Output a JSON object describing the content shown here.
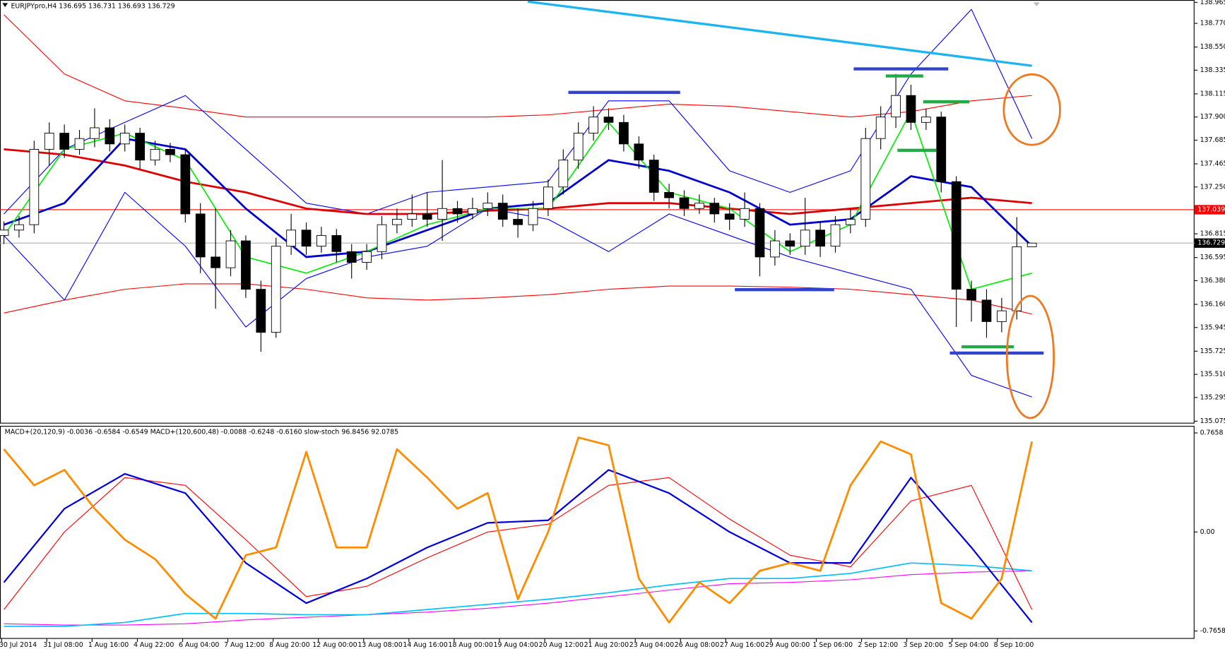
{
  "chart_data": [
    {
      "type": "candlestick",
      "title": "EURJPYpro,H4  136.695 136.731 136.693 136.729",
      "ylim": [
        135.075,
        138.965
      ],
      "yticks": [
        138.965,
        {
          "value": 138.77,
          "label": "138.770"
        },
        {
          "value": 138.55,
          "label": "138.550"
        },
        138.335,
        138.115,
        {
          "value": 137.9,
          "label": "137.900"
        },
        137.685,
        137.465,
        {
          "value": 137.25,
          "label": "137.250"
        },
        136.815,
        136.595,
        {
          "value": 136.38,
          "label": "136.380"
        },
        {
          "value": 136.16,
          "label": "136.160"
        },
        135.945,
        135.725,
        {
          "value": 135.51,
          "label": "135.510"
        },
        135.295,
        135.075
      ],
      "hline": {
        "value": 137.039,
        "color": "#ff0000"
      },
      "last_price": 136.729,
      "up_color": "#ffffff",
      "down_color": "#000000",
      "open": [
        136.8,
        136.85,
        136.9,
        137.6,
        137.75,
        137.6,
        137.7,
        137.8,
        137.65,
        137.75,
        137.5,
        137.6,
        137.55,
        137.0,
        136.6,
        136.5,
        136.75,
        136.3,
        135.9,
        136.7,
        136.85,
        136.7,
        136.8,
        136.65,
        136.55,
        136.65,
        136.9,
        136.95,
        137.0,
        136.95,
        137.05,
        137.0,
        137.05,
        137.1,
        136.95,
        136.9,
        137.05,
        137.25,
        137.5,
        137.75,
        137.9,
        137.85,
        137.65,
        137.5,
        137.2,
        137.15,
        137.05,
        137.1,
        137.0,
        136.95,
        137.05,
        136.6,
        136.75,
        136.7,
        136.85,
        136.7,
        136.9,
        136.95,
        137.7,
        137.9,
        138.1,
        137.85,
        137.9,
        137.3,
        136.3,
        136.2,
        136.0,
        136.1,
        136.695
      ],
      "high": [
        136.93,
        136.98,
        137.68,
        137.85,
        137.83,
        137.78,
        137.98,
        137.88,
        137.83,
        137.8,
        137.68,
        137.66,
        137.6,
        137.1,
        137.05,
        136.85,
        136.8,
        136.38,
        136.78,
        137.0,
        136.92,
        136.88,
        136.86,
        136.72,
        136.72,
        136.98,
        137.05,
        137.18,
        137.2,
        137.5,
        137.12,
        137.15,
        137.2,
        137.18,
        137.05,
        137.12,
        137.32,
        137.6,
        137.85,
        138.0,
        137.98,
        137.92,
        137.72,
        137.55,
        137.28,
        137.22,
        137.18,
        137.15,
        137.1,
        137.2,
        137.1,
        136.85,
        136.82,
        137.15,
        136.92,
        136.98,
        137.05,
        137.8,
        138.0,
        138.3,
        138.2,
        137.98,
        137.95,
        137.35,
        136.38,
        136.3,
        136.22,
        136.97,
        136.731
      ],
      "low": [
        136.72,
        136.78,
        136.82,
        137.45,
        137.52,
        137.55,
        137.62,
        137.58,
        137.58,
        137.42,
        137.45,
        137.48,
        136.92,
        136.45,
        136.12,
        136.42,
        136.22,
        135.72,
        135.85,
        136.62,
        136.62,
        136.64,
        136.55,
        136.4,
        136.48,
        136.58,
        136.82,
        136.88,
        136.88,
        136.75,
        136.92,
        136.95,
        136.98,
        136.88,
        136.78,
        136.84,
        136.98,
        137.18,
        137.42,
        137.68,
        137.78,
        137.58,
        137.42,
        137.12,
        137.05,
        136.98,
        137.0,
        136.92,
        136.85,
        136.88,
        136.42,
        136.52,
        136.62,
        136.62,
        136.6,
        136.64,
        136.82,
        136.88,
        137.6,
        137.8,
        137.78,
        137.78,
        137.2,
        135.95,
        136.0,
        135.85,
        135.9,
        136.02,
        136.693
      ],
      "close": [
        136.85,
        136.9,
        137.6,
        137.75,
        137.6,
        137.7,
        137.8,
        137.65,
        137.75,
        137.5,
        137.6,
        137.55,
        137.0,
        136.6,
        136.5,
        136.75,
        136.3,
        135.9,
        136.7,
        136.85,
        136.7,
        136.8,
        136.65,
        136.55,
        136.65,
        136.9,
        136.95,
        137.0,
        136.95,
        137.05,
        137.0,
        137.05,
        137.1,
        136.95,
        136.9,
        137.05,
        137.25,
        137.5,
        137.75,
        137.9,
        137.85,
        137.65,
        137.5,
        137.2,
        137.15,
        137.05,
        137.1,
        137.0,
        136.95,
        137.05,
        136.6,
        136.75,
        136.7,
        136.85,
        136.7,
        136.9,
        136.95,
        137.7,
        137.9,
        138.1,
        137.85,
        137.9,
        137.3,
        136.3,
        136.2,
        136.0,
        136.1,
        136.695,
        136.729
      ],
      "series": [
        {
          "color": "#ff0000",
          "width": 1,
          "values": [
            138.85,
            138.3,
            138.05,
            137.98,
            137.9,
            137.9,
            137.9,
            137.9,
            137.9,
            137.92,
            137.97,
            138.02,
            138.0,
            137.95,
            137.9,
            137.95,
            138.05,
            138.1
          ]
        },
        {
          "color": "#ff0000",
          "width": 1,
          "values": [
            136.08,
            136.2,
            136.3,
            136.35,
            136.35,
            136.3,
            136.22,
            136.2,
            136.22,
            136.25,
            136.3,
            136.33,
            136.33,
            136.32,
            136.3,
            136.25,
            136.2,
            136.07
          ]
        },
        {
          "color": "#0000ff",
          "width": 1,
          "values": [
            137.0,
            137.6,
            137.85,
            138.1,
            137.6,
            137.1,
            137.0,
            137.2,
            137.25,
            137.3,
            138.05,
            138.05,
            137.4,
            137.2,
            137.4,
            138.3,
            138.9,
            137.7
          ]
        },
        {
          "color": "#0000ff",
          "width": 1,
          "values": [
            136.8,
            136.2,
            137.2,
            136.7,
            135.95,
            136.4,
            136.6,
            136.7,
            137.05,
            136.95,
            136.65,
            137.0,
            136.8,
            136.6,
            136.45,
            136.3,
            135.5,
            135.3
          ]
        },
        {
          "color": "#dd0000",
          "width": 2.5,
          "values": [
            137.6,
            137.55,
            137.45,
            137.3,
            137.2,
            137.05,
            137.0,
            137.0,
            137.03,
            137.05,
            137.1,
            137.1,
            137.05,
            137.0,
            137.05,
            137.1,
            137.15,
            137.1
          ]
        },
        {
          "color": "#0000cc",
          "width": 2.5,
          "values": [
            136.9,
            137.1,
            137.7,
            137.6,
            137.05,
            136.6,
            136.65,
            136.85,
            137.05,
            137.1,
            137.5,
            137.4,
            137.2,
            136.9,
            136.95,
            137.35,
            137.25,
            136.7
          ]
        },
        {
          "color": "#00ee00",
          "width": 1.5,
          "values": [
            136.8,
            137.6,
            137.75,
            137.5,
            136.6,
            136.45,
            136.65,
            136.9,
            137.05,
            137.05,
            137.85,
            137.2,
            137.05,
            136.65,
            136.9,
            137.95,
            136.3,
            136.45
          ]
        }
      ],
      "time_labels": [
        "30 Jul 2014",
        "31 Jul 08:00",
        "1 Aug 16:00",
        "4 Aug 22:00",
        "6 Aug 04:00",
        "7 Aug 12:00",
        "8 Aug 20:00",
        "12 Aug 00:00",
        "13 Aug 08:00",
        "14 Aug 16:00",
        "18 Aug 00:00",
        "19 Aug 04:00",
        "20 Aug 12:00",
        "21 Aug 20:00",
        "23 Aug 04:00",
        "26 Aug 08:00",
        "27 Aug 16:00",
        "29 Aug 00:00",
        "1 Sep 06:00",
        "2 Sep 12:00",
        "3 Sep 20:00",
        "5 Sep 04:00",
        "8 Sep 10:00"
      ]
    },
    {
      "type": "line",
      "title": "MACD+(20,120,9) -0.0036 -0.6584 -0.6549   MACD+(120,600,48) -0.0088 -0.6248 -0.6160   slow-stoch 96.8456 92.0785",
      "ylim": [
        -0.7658,
        0.7658
      ],
      "yticks": [
        0.7658,
        {
          "value": 0,
          "label": "0.00"
        },
        -0.7658
      ],
      "series": [
        {
          "color": "#ff00ff",
          "width": 1,
          "values": [
            -0.71,
            -0.72,
            -0.72,
            -0.71,
            -0.68,
            -0.66,
            -0.64,
            -0.62,
            -0.59,
            -0.55,
            -0.5,
            -0.45,
            -0.4,
            -0.39,
            -0.37,
            -0.33,
            -0.31,
            -0.3
          ]
        },
        {
          "color": "#00bfff",
          "width": 1.5,
          "values": [
            -0.73,
            -0.73,
            -0.7,
            -0.63,
            -0.63,
            -0.64,
            -0.64,
            -0.6,
            -0.56,
            -0.52,
            -0.47,
            -0.41,
            -0.36,
            -0.36,
            -0.32,
            -0.24,
            -0.26,
            -0.3
          ]
        },
        {
          "color": "#ff0000",
          "width": 1,
          "values": [
            -0.6,
            0.0,
            0.42,
            0.36,
            -0.06,
            -0.5,
            -0.42,
            -0.2,
            0.0,
            0.06,
            0.36,
            0.42,
            0.1,
            -0.18,
            -0.27,
            0.24,
            0.36,
            -0.6
          ]
        },
        {
          "color": "#0000dd",
          "width": 2,
          "values": [
            -0.39,
            0.18,
            0.45,
            0.3,
            -0.24,
            -0.55,
            -0.36,
            -0.12,
            0.07,
            0.09,
            0.48,
            0.3,
            0.0,
            -0.24,
            -0.24,
            0.42,
            -0.12,
            -0.7
          ]
        },
        {
          "color": "#ff8c00",
          "width": 2.5,
          "values": [
            0.64,
            0.36,
            0.48,
            0.18,
            -0.06,
            -0.21,
            -0.48,
            -0.67,
            -0.18,
            -0.12,
            0.62,
            -0.12,
            -0.12,
            0.64,
            0.42,
            0.18,
            0.3,
            -0.52,
            0.0,
            0.73,
            0.67,
            -0.36,
            -0.7,
            -0.39,
            -0.55,
            -0.3,
            -0.24,
            -0.3,
            0.36,
            0.7,
            0.6,
            -0.55,
            -0.67,
            -0.36,
            0.7
          ]
        }
      ]
    }
  ]
}
